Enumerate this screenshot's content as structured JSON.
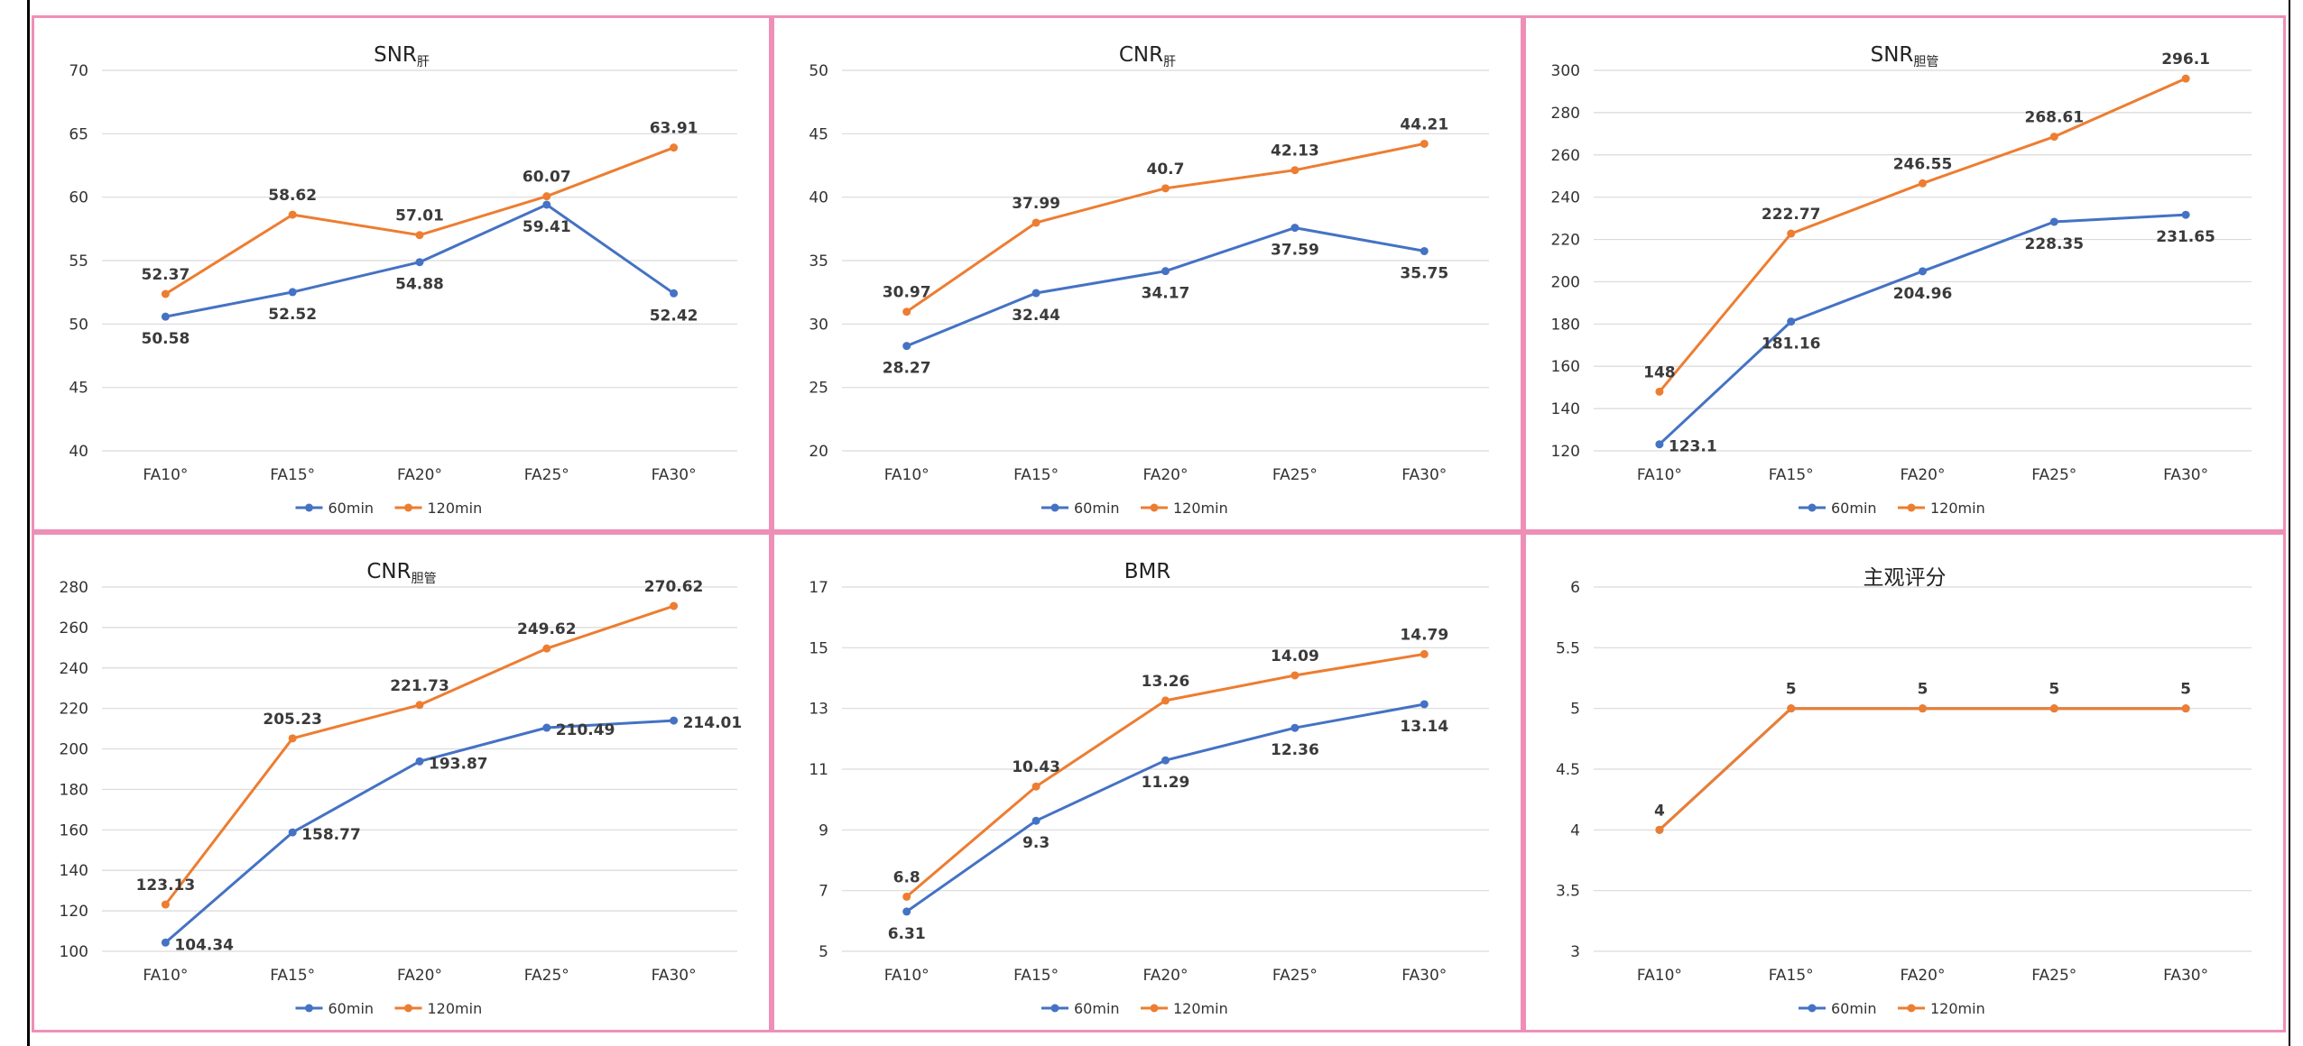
{
  "chart_data": [
    {
      "type": "line",
      "title": "SNR",
      "title_sub": "肝",
      "categories": [
        "FA10°",
        "FA15°",
        "FA20°",
        "FA25°",
        "FA30°"
      ],
      "ylim": [
        40,
        70
      ],
      "yticks": [
        40,
        45,
        50,
        55,
        60,
        65,
        70
      ],
      "series": [
        {
          "name": "60min",
          "color": "#4472c4",
          "values": [
            50.58,
            52.52,
            54.88,
            59.41,
            52.42
          ],
          "labels": [
            "50.58",
            "52.52",
            "54.88",
            "59.41",
            "52.42"
          ],
          "label_pos": [
            "below",
            "below",
            "below",
            "below",
            "below"
          ]
        },
        {
          "name": "120min",
          "color": "#ed7d31",
          "values": [
            52.37,
            58.62,
            57.01,
            60.07,
            63.91
          ],
          "labels": [
            "52.37",
            "58.62",
            "57.01",
            "60.07",
            "63.91"
          ],
          "label_pos": [
            "above",
            "above",
            "above",
            "above",
            "above"
          ]
        }
      ]
    },
    {
      "type": "line",
      "title": "CNR",
      "title_sub": "肝",
      "categories": [
        "FA10°",
        "FA15°",
        "FA20°",
        "FA25°",
        "FA30°"
      ],
      "ylim": [
        20,
        50
      ],
      "yticks": [
        20,
        25,
        30,
        35,
        40,
        45,
        50
      ],
      "series": [
        {
          "name": "60min",
          "color": "#4472c4",
          "values": [
            28.27,
            32.44,
            34.17,
            37.59,
            35.75
          ],
          "labels": [
            "28.27",
            "32.44",
            "34.17",
            "37.59",
            "35.75"
          ],
          "label_pos": [
            "below",
            "below",
            "below",
            "below",
            "below"
          ]
        },
        {
          "name": "120min",
          "color": "#ed7d31",
          "values": [
            30.97,
            37.99,
            40.7,
            42.13,
            44.21
          ],
          "labels": [
            "30.97",
            "37.99",
            "40.7",
            "42.13",
            "44.21"
          ],
          "label_pos": [
            "above",
            "above",
            "above",
            "above",
            "above"
          ]
        }
      ]
    },
    {
      "type": "line",
      "title": "SNR",
      "title_sub": "胆管",
      "categories": [
        "FA10°",
        "FA15°",
        "FA20°",
        "FA25°",
        "FA30°"
      ],
      "ylim": [
        120,
        300
      ],
      "yticks": [
        120,
        140,
        160,
        180,
        200,
        220,
        240,
        260,
        280,
        300
      ],
      "series": [
        {
          "name": "60min",
          "color": "#4472c4",
          "values": [
            123.1,
            181.16,
            204.96,
            228.35,
            231.65
          ],
          "labels": [
            "123.1",
            "181.16",
            "204.96",
            "228.35",
            "231.65"
          ],
          "label_pos": [
            "right",
            "below",
            "below",
            "below",
            "below"
          ]
        },
        {
          "name": "120min",
          "color": "#ed7d31",
          "values": [
            148,
            222.77,
            246.55,
            268.61,
            296.1
          ],
          "labels": [
            "148",
            "222.77",
            "246.55",
            "268.61",
            "296.1"
          ],
          "label_pos": [
            "above",
            "above",
            "above",
            "above",
            "above"
          ]
        }
      ]
    },
    {
      "type": "line",
      "title": "CNR",
      "title_sub": "胆管",
      "categories": [
        "FA10°",
        "FA15°",
        "FA20°",
        "FA25°",
        "FA30°"
      ],
      "ylim": [
        100,
        280
      ],
      "yticks": [
        100,
        120,
        140,
        160,
        180,
        200,
        220,
        240,
        260,
        280
      ],
      "series": [
        {
          "name": "60min",
          "color": "#4472c4",
          "values": [
            104.34,
            158.77,
            193.87,
            210.49,
            214.01
          ],
          "labels": [
            "104.34",
            "158.77",
            "193.87",
            "210.49",
            "214.01"
          ],
          "label_pos": [
            "right",
            "right",
            "right",
            "right",
            "right"
          ]
        },
        {
          "name": "120min",
          "color": "#ed7d31",
          "values": [
            123.13,
            205.23,
            221.73,
            249.62,
            270.62
          ],
          "labels": [
            "123.13",
            "205.23",
            "221.73",
            "249.62",
            "270.62"
          ],
          "label_pos": [
            "above",
            "above",
            "above",
            "above",
            "above"
          ]
        }
      ]
    },
    {
      "type": "line",
      "title": "BMR",
      "title_sub": "",
      "categories": [
        "FA10°",
        "FA15°",
        "FA20°",
        "FA25°",
        "FA30°"
      ],
      "ylim": [
        5,
        17
      ],
      "yticks": [
        5,
        7,
        9,
        11,
        13,
        15,
        17
      ],
      "series": [
        {
          "name": "60min",
          "color": "#4472c4",
          "values": [
            6.31,
            9.3,
            11.29,
            12.36,
            13.14
          ],
          "labels": [
            "6.31",
            "9.3",
            "11.29",
            "12.36",
            "13.14"
          ],
          "label_pos": [
            "below",
            "below",
            "below",
            "below",
            "below"
          ]
        },
        {
          "name": "120min",
          "color": "#ed7d31",
          "values": [
            6.8,
            10.43,
            13.26,
            14.09,
            14.79
          ],
          "labels": [
            "6.8",
            "10.43",
            "13.26",
            "14.09",
            "14.79"
          ],
          "label_pos": [
            "above",
            "above",
            "above",
            "above",
            "above"
          ]
        }
      ]
    },
    {
      "type": "line",
      "title": "主观评分",
      "title_sub": "",
      "categories": [
        "FA10°",
        "FA15°",
        "FA20°",
        "FA25°",
        "FA30°"
      ],
      "ylim": [
        3,
        6
      ],
      "yticks": [
        3,
        3.5,
        4,
        4.5,
        5,
        5.5,
        6
      ],
      "series": [
        {
          "name": "60min",
          "color": "#4472c4",
          "values": [
            4,
            5,
            5,
            5,
            5
          ],
          "labels": [
            "",
            "",
            "",
            "",
            ""
          ],
          "label_pos": [
            "above",
            "above",
            "above",
            "above",
            "above"
          ]
        },
        {
          "name": "120min",
          "color": "#ed7d31",
          "values": [
            4,
            5,
            5,
            5,
            5
          ],
          "labels": [
            "4",
            "5",
            "5",
            "5",
            "5"
          ],
          "label_pos": [
            "above",
            "above",
            "above",
            "above",
            "above"
          ]
        }
      ]
    }
  ]
}
